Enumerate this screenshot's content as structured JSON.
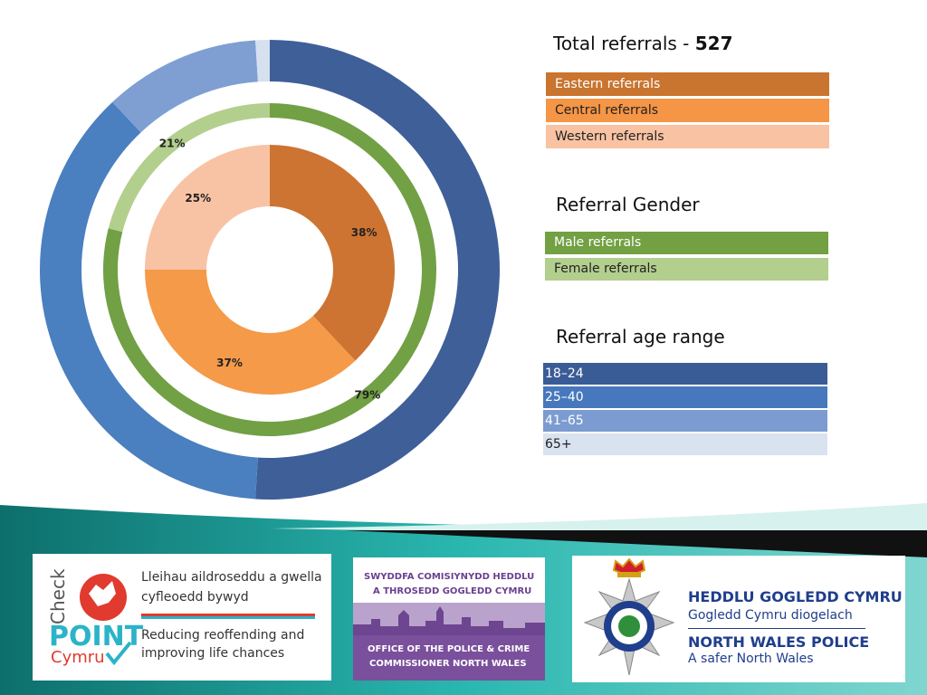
{
  "chart_data": {
    "type": "donut",
    "rings": [
      {
        "name": "Referral age range",
        "categories": [
          "18-24",
          "25-40",
          "41-65",
          "65+"
        ],
        "values": [
          51,
          37,
          11,
          1
        ],
        "labels": [
          "51%",
          "37%",
          "11%",
          "1%"
        ],
        "colors": [
          "#3f5f99",
          "#4a7fc0",
          "#7f9fd3",
          "#d6e0ef"
        ]
      },
      {
        "name": "Referral Gender",
        "categories": [
          "Male referrals",
          "Female referrals"
        ],
        "values": [
          79,
          21
        ],
        "labels": [
          "79%",
          "21%"
        ],
        "colors": [
          "#72a045",
          "#b3cf8d"
        ]
      },
      {
        "name": "Referrals",
        "categories": [
          "Eastern referrals",
          "Central referrals",
          "Western referrals"
        ],
        "values": [
          38,
          37,
          25
        ],
        "labels": [
          "38%",
          "37%",
          "25%"
        ],
        "colors": [
          "#cd7433",
          "#f59a48",
          "#f8c3a4"
        ]
      }
    ]
  },
  "legend": {
    "total_label": "Total referrals - ",
    "total_value": "527",
    "areas": [
      {
        "label": "Eastern referrals",
        "color": "#c9742f",
        "text_color": "#ffffff"
      },
      {
        "label": "Central referrals",
        "color": "#f59546",
        "text_color": "#222222"
      },
      {
        "label": "Western referrals",
        "color": "#f9c3a3",
        "text_color": "#222222"
      }
    ],
    "gender_title": "Referral Gender",
    "gender": [
      {
        "label": "Male referrals",
        "color": "#72a043",
        "text_color": "#ffffff"
      },
      {
        "label": "Female referrals",
        "color": "#b3cf8d",
        "text_color": "#222222"
      }
    ],
    "age_title": "Referral age range",
    "ages": [
      {
        "label": "18–24",
        "color": "#3a5c96",
        "text_color": "#ffffff"
      },
      {
        "label": "25–40",
        "color": "#4778bd",
        "text_color": "#ffffff"
      },
      {
        "label": "41–65",
        "color": "#7c9cd1",
        "text_color": "#ffffff"
      },
      {
        "label": "65+",
        "color": "#d9e2ef",
        "text_color": "#222222"
      }
    ]
  },
  "logos": {
    "checkpoint": {
      "word_check": "Check",
      "word_point": "POINT",
      "word_cymru": "Cymru",
      "welsh_line1": "Lleihau aildroseddu a gwella",
      "welsh_line2": "cyfleoedd bywyd",
      "english_line1": "Reducing reoffending and",
      "english_line2": "improving life chances"
    },
    "opcc": {
      "line1": "SWYDDFA COMISIYNYDD HEDDLU",
      "line2": "A THROSEDD GOGLEDD CYMRU",
      "line3": "OFFICE OF THE POLICE & CRIME",
      "line4": "COMMISSIONER NORTH WALES"
    },
    "police": {
      "line1": "HEDDLU GOGLEDD CYMRU",
      "line2": "Gogledd Cymru diogelach",
      "line3": "NORTH WALES POLICE",
      "line4": "A safer North Wales"
    }
  }
}
